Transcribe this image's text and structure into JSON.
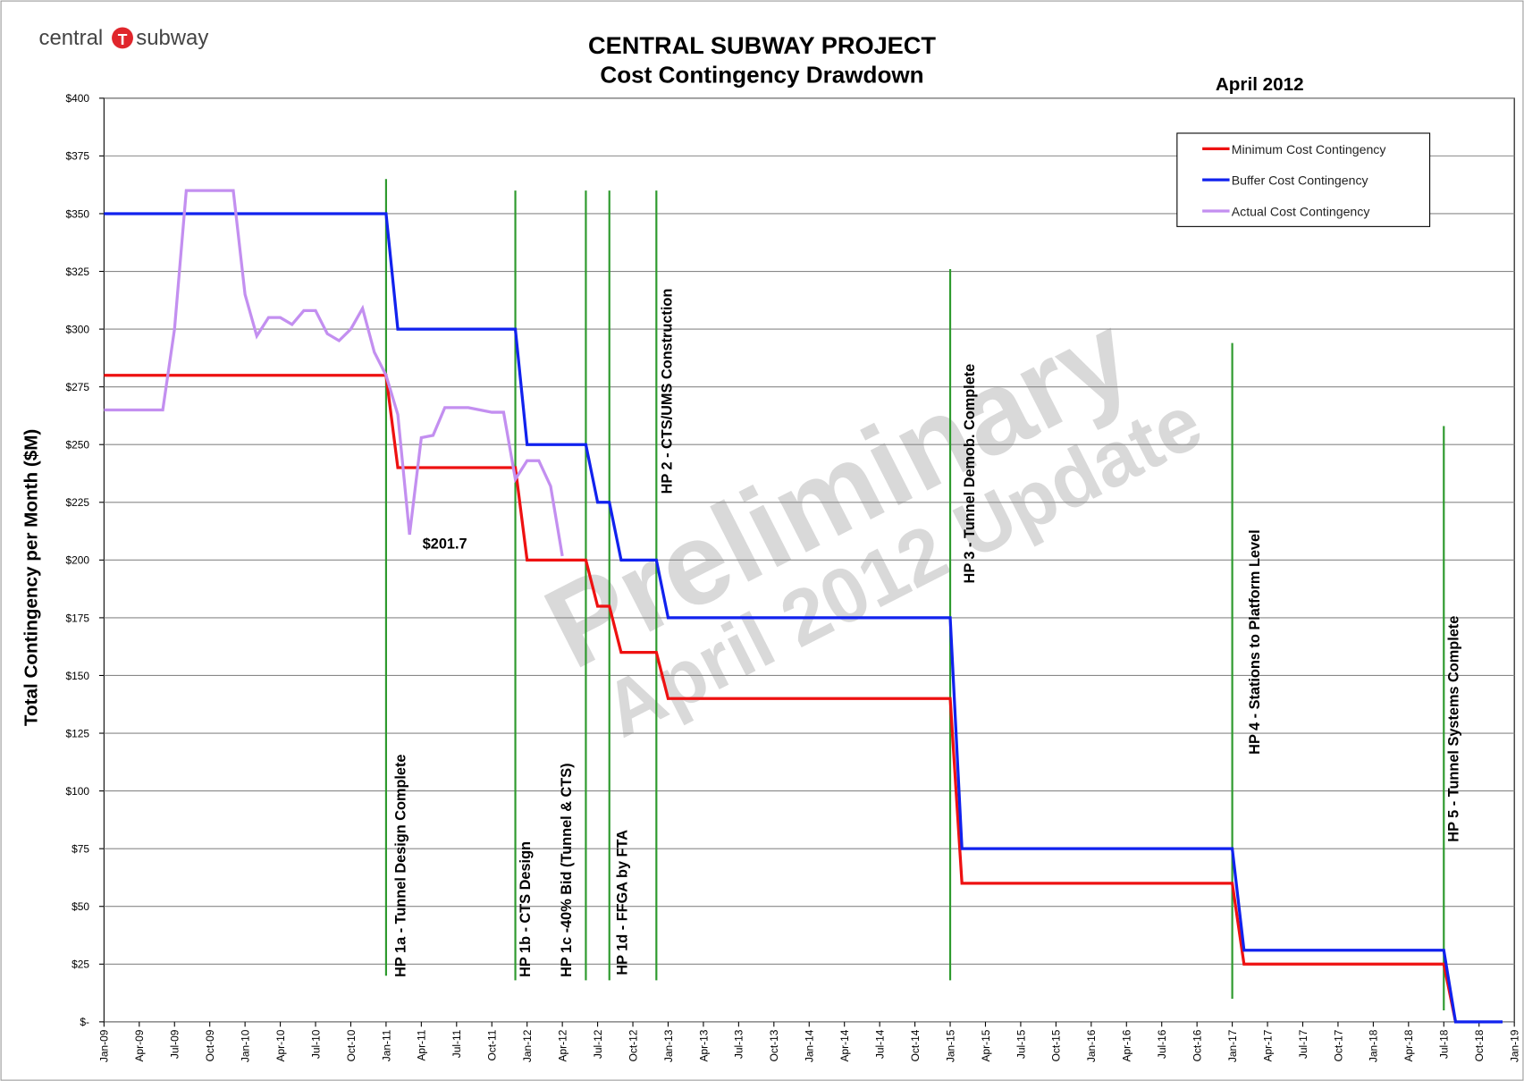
{
  "logo": {
    "left": "central",
    "mark": "T",
    "right": "subway"
  },
  "chart_data": {
    "type": "line",
    "title": "CENTRAL SUBWAY PROJECT",
    "subtitle": "Cost Contingency Drawdown",
    "date_label": "April 2012",
    "y_label": "Total Contingency per Month ($M)",
    "xlim": [
      "2009-01",
      "2019-01"
    ],
    "xticks": [
      {
        "value": "2009-01",
        "label": "Jan-09"
      },
      {
        "value": "2009-04",
        "label": "Apr-09"
      },
      {
        "value": "2009-07",
        "label": "Jul-09"
      },
      {
        "value": "2009-10",
        "label": "Oct-09"
      },
      {
        "value": "2010-01",
        "label": "Jan-10"
      },
      {
        "value": "2010-04",
        "label": "Apr-10"
      },
      {
        "value": "2010-07",
        "label": "Jul-10"
      },
      {
        "value": "2010-10",
        "label": "Oct-10"
      },
      {
        "value": "2011-01",
        "label": "Jan-11"
      },
      {
        "value": "2011-04",
        "label": "Apr-11"
      },
      {
        "value": "2011-07",
        "label": "Jul-11"
      },
      {
        "value": "2011-10",
        "label": "Oct-11"
      },
      {
        "value": "2012-01",
        "label": "Jan-12"
      },
      {
        "value": "2012-04",
        "label": "Apr-12"
      },
      {
        "value": "2012-07",
        "label": "Jul-12"
      },
      {
        "value": "2012-10",
        "label": "Oct-12"
      },
      {
        "value": "2013-01",
        "label": "Jan-13"
      },
      {
        "value": "2013-04",
        "label": "Apr-13"
      },
      {
        "value": "2013-07",
        "label": "Jul-13"
      },
      {
        "value": "2013-10",
        "label": "Oct-13"
      },
      {
        "value": "2014-01",
        "label": "Jan-14"
      },
      {
        "value": "2014-04",
        "label": "Apr-14"
      },
      {
        "value": "2014-07",
        "label": "Jul-14"
      },
      {
        "value": "2014-10",
        "label": "Oct-14"
      },
      {
        "value": "2015-01",
        "label": "Jan-15"
      },
      {
        "value": "2015-04",
        "label": "Apr-15"
      },
      {
        "value": "2015-07",
        "label": "Jul-15"
      },
      {
        "value": "2015-10",
        "label": "Oct-15"
      },
      {
        "value": "2016-01",
        "label": "Jan-16"
      },
      {
        "value": "2016-04",
        "label": "Apr-16"
      },
      {
        "value": "2016-07",
        "label": "Jul-16"
      },
      {
        "value": "2016-10",
        "label": "Oct-16"
      },
      {
        "value": "2017-01",
        "label": "Jan-17"
      },
      {
        "value": "2017-04",
        "label": "Apr-17"
      },
      {
        "value": "2017-07",
        "label": "Jul-17"
      },
      {
        "value": "2017-10",
        "label": "Oct-17"
      },
      {
        "value": "2018-01",
        "label": "Jan-18"
      },
      {
        "value": "2018-04",
        "label": "Apr-18"
      },
      {
        "value": "2018-07",
        "label": "Jul-18"
      },
      {
        "value": "2018-10",
        "label": "Oct-18"
      },
      {
        "value": "2019-01",
        "label": "Jan-19"
      }
    ],
    "ylim": [
      0,
      400
    ],
    "yticks": [
      {
        "value": 0,
        "label": "$-"
      },
      {
        "value": 25,
        "label": "$25"
      },
      {
        "value": 50,
        "label": "$50"
      },
      {
        "value": 75,
        "label": "$75"
      },
      {
        "value": 100,
        "label": "$100"
      },
      {
        "value": 125,
        "label": "$125"
      },
      {
        "value": 150,
        "label": "$150"
      },
      {
        "value": 175,
        "label": "$175"
      },
      {
        "value": 200,
        "label": "$200"
      },
      {
        "value": 225,
        "label": "$225"
      },
      {
        "value": 250,
        "label": "$250"
      },
      {
        "value": 275,
        "label": "$275"
      },
      {
        "value": 300,
        "label": "$300"
      },
      {
        "value": 325,
        "label": "$325"
      },
      {
        "value": 350,
        "label": "$350"
      },
      {
        "value": 375,
        "label": "$375"
      },
      {
        "value": 400,
        "label": "$400"
      }
    ],
    "grid": true,
    "legend": "upper right",
    "series": [
      {
        "name": "Minimum Cost Contingency",
        "color": "#ee1111",
        "x": [
          "2009-01",
          "2011-01",
          "2011-02",
          "2011-12",
          "2012-01",
          "2012-06",
          "2012-07",
          "2012-08",
          "2012-09",
          "2012-12",
          "2013-01",
          "2015-01",
          "2015-02",
          "2017-01",
          "2017-02",
          "2018-07",
          "2018-08"
        ],
        "values": [
          280,
          280,
          240,
          240,
          200,
          200,
          180,
          180,
          160,
          160,
          140,
          140,
          60,
          60,
          25,
          25,
          0
        ]
      },
      {
        "name": "Buffer Cost Contingency",
        "color": "#1122ee",
        "x": [
          "2009-01",
          "2011-01",
          "2011-02",
          "2011-12",
          "2012-01",
          "2012-06",
          "2012-07",
          "2012-08",
          "2012-09",
          "2012-12",
          "2013-01",
          "2015-01",
          "2015-02",
          "2017-01",
          "2017-02",
          "2018-07",
          "2018-08",
          "2018-12"
        ],
        "values": [
          350,
          350,
          300,
          300,
          250,
          250,
          225,
          225,
          200,
          200,
          175,
          175,
          75,
          75,
          31,
          31,
          0,
          0
        ]
      },
      {
        "name": "Actual Cost Contingency",
        "color": "#c38ff0",
        "x": [
          "2009-01",
          "2009-02",
          "2009-03",
          "2009-04",
          "2009-05",
          "2009-06",
          "2009-07",
          "2009-08",
          "2009-09",
          "2009-10",
          "2009-11",
          "2009-12",
          "2010-01",
          "2010-02",
          "2010-03",
          "2010-04",
          "2010-05",
          "2010-06",
          "2010-07",
          "2010-08",
          "2010-09",
          "2010-10",
          "2010-11",
          "2010-12",
          "2011-01",
          "2011-02",
          "2011-03",
          "2011-04",
          "2011-05",
          "2011-06",
          "2011-07",
          "2011-08",
          "2011-09",
          "2011-10",
          "2011-11",
          "2011-12",
          "2012-01",
          "2012-02",
          "2012-03",
          "2012-04"
        ],
        "values": [
          265,
          265,
          265,
          265,
          265,
          265,
          300,
          360,
          360,
          360,
          360,
          360,
          315,
          297,
          305,
          305,
          302,
          308,
          308,
          298,
          295,
          300,
          309,
          290,
          280,
          263,
          211,
          253,
          254,
          266,
          266,
          266,
          265,
          264,
          264,
          235,
          243,
          243,
          232,
          201.7
        ]
      }
    ],
    "annotations": [
      {
        "text": "$201.7",
        "x": "2011-06",
        "y": 205
      }
    ],
    "milestone_color": "#2e9a2e",
    "milestones": [
      {
        "text": "HP 1a - Tunnel Design Complete",
        "x": "2011-01",
        "y_range": [
          20,
          365
        ]
      },
      {
        "text": "HP 1b - CTS Design",
        "x": "2011-12",
        "y_range": [
          18,
          360
        ]
      },
      {
        "text": "HP 1c -40% Bid (Tunnel & CTS)",
        "x": "2012-06",
        "y_range": [
          18,
          360
        ]
      },
      {
        "text": "HP 1d - FFGA by FTA",
        "x": "2012-08",
        "y_range": [
          18,
          360
        ]
      },
      {
        "text": "HP 2 - CTS/UMS  Construction",
        "x": "2012-12",
        "y_range": [
          18,
          360
        ]
      },
      {
        "text": "HP 3 - Tunnel Demob. Complete",
        "x": "2015-01",
        "y_range": [
          18,
          326
        ]
      },
      {
        "text": "HP 4 - Stations to Platform Level",
        "x": "2017-01",
        "y_range": [
          10,
          294
        ]
      },
      {
        "text": "HP 5 - Tunnel Systems Complete",
        "x": "2018-07",
        "y_range": [
          5,
          258
        ]
      }
    ],
    "watermark": [
      "Preliminary",
      "April 2012 Update"
    ]
  }
}
